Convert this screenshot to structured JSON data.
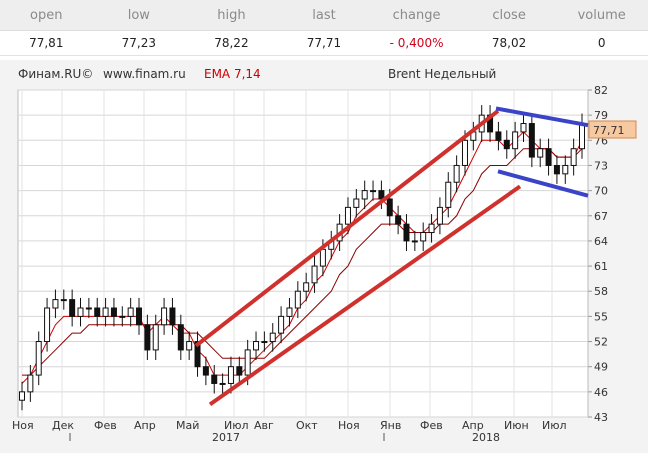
{
  "quote": {
    "headers": [
      "open",
      "low",
      "high",
      "last",
      "change",
      "close",
      "volume"
    ],
    "values": [
      "77,81",
      "77,23",
      "78,22",
      "77,71",
      "- 0,400%",
      "78,02",
      "0"
    ]
  },
  "chart_header": {
    "source": "Финам.RU©",
    "site": "www.finam.ru",
    "indicator": "EMA 7,14",
    "title": "Brent Недельный"
  },
  "chart_data": {
    "type": "candlestick",
    "title": "Brent Недельный",
    "indicator": "EMA 7,14",
    "ylim": [
      43,
      82
    ],
    "y_ticks": [
      "82",
      "79",
      "76",
      "73",
      "70",
      "67",
      "64",
      "61",
      "58",
      "55",
      "52",
      "49",
      "46",
      "43"
    ],
    "x_ticks": [
      "Ноя",
      "Дек",
      "Янв",
      "Фев",
      "Мар",
      "Апр",
      "Май",
      "Июн",
      "Июл",
      "Авг",
      "Сен",
      "Окт",
      "Ноя",
      "Дек",
      "Янв",
      "Фев",
      "Мар",
      "Апр",
      "Май",
      "Июн",
      "Июл"
    ],
    "x_tick_labels": [
      "Ноя",
      "Дек",
      "Фев",
      "Апр",
      "Май",
      "Июл",
      "Авг",
      "Окт",
      "Ноя",
      "Янв",
      "Фев",
      "Апр",
      "Июн",
      "Июл"
    ],
    "x_year_labels": [
      {
        "label": "2017",
        "after": "Янв"
      },
      {
        "label": "2018",
        "after": "Янв"
      }
    ],
    "last_price_label": "77,71",
    "last_price": 77.71,
    "grid": true,
    "series": [
      {
        "kind": "candles",
        "close": [
          46,
          48,
          52,
          56,
          57,
          57,
          55,
          56,
          56,
          55,
          56,
          55,
          55,
          56,
          54,
          51,
          54,
          56,
          54,
          51,
          52,
          49,
          48,
          47,
          47,
          49,
          48,
          51,
          52,
          52,
          53,
          55,
          56,
          58,
          59,
          61,
          63,
          64,
          66,
          68,
          69,
          70,
          70,
          69,
          67,
          66,
          64,
          64,
          65,
          66,
          68,
          71,
          73,
          76,
          77,
          79,
          77,
          76,
          75,
          77,
          78,
          74,
          75,
          73,
          72,
          73,
          75,
          78
        ]
      },
      {
        "name": "EMA 7",
        "kind": "line",
        "color": "#cc0000",
        "values": [
          47,
          48,
          50,
          52,
          54,
          55,
          55,
          55,
          55,
          55,
          55,
          55,
          55,
          55,
          55,
          53,
          54,
          55,
          54,
          53,
          53,
          51,
          50,
          48,
          48,
          48,
          48,
          49,
          50,
          51,
          52,
          53,
          54,
          56,
          57,
          59,
          60,
          62,
          64,
          65,
          67,
          68,
          69,
          69,
          68,
          67,
          66,
          65,
          65,
          66,
          67,
          68,
          70,
          72,
          74,
          76,
          76,
          76,
          75,
          76,
          77,
          76,
          75,
          75,
          74,
          74,
          74,
          76
        ]
      },
      {
        "name": "EMA 14",
        "kind": "line",
        "color": "#8b0000",
        "values": [
          48,
          48,
          49,
          50,
          51,
          52,
          53,
          53,
          54,
          54,
          54,
          54,
          54,
          54,
          54,
          54,
          54,
          54,
          54,
          54,
          53,
          53,
          52,
          51,
          50,
          50,
          50,
          50,
          50,
          50,
          51,
          52,
          53,
          54,
          55,
          56,
          57,
          58,
          60,
          61,
          63,
          64,
          65,
          66,
          66,
          66,
          65,
          65,
          65,
          65,
          66,
          66,
          67,
          69,
          70,
          72,
          73,
          73,
          73,
          74,
          75,
          75,
          75,
          75,
          74,
          74,
          74,
          75
        ]
      }
    ]
  }
}
